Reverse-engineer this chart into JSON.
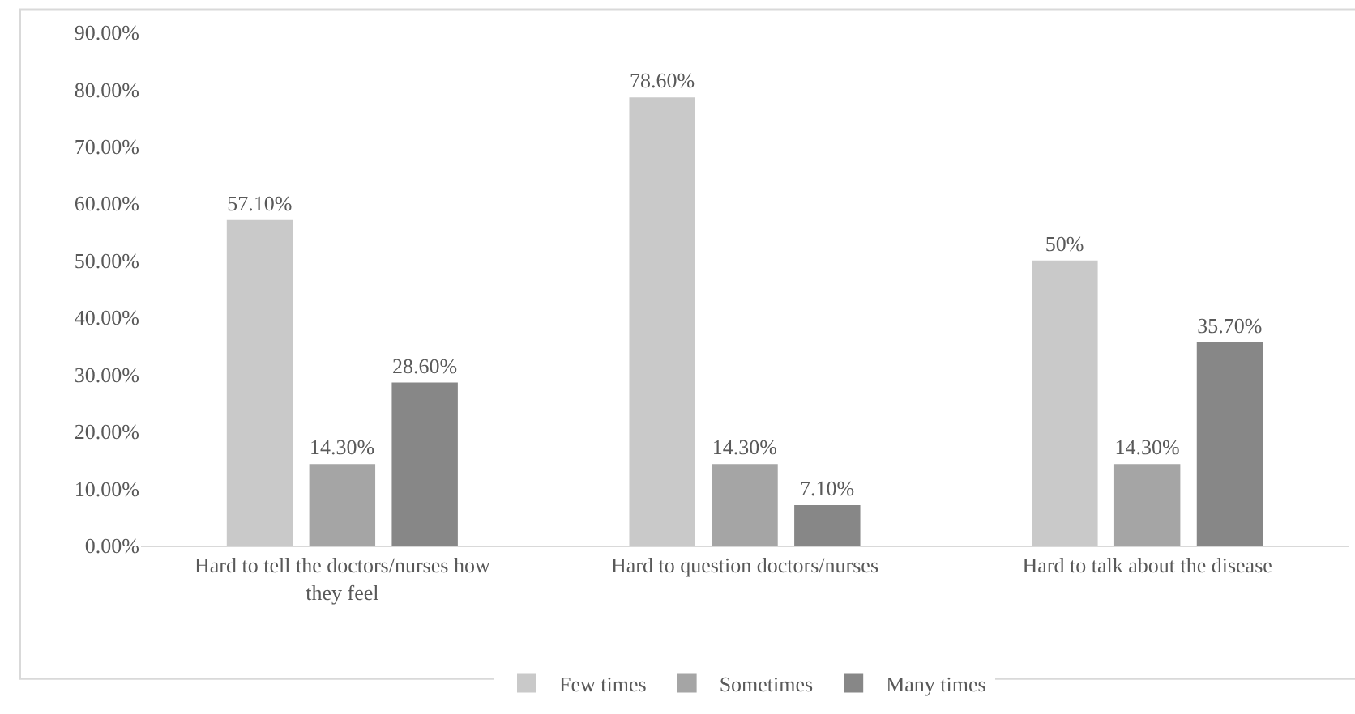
{
  "chart_data": {
    "type": "bar",
    "categories": [
      "Hard to tell the doctors/nurses how they feel",
      "Hard to question doctors/nurses",
      "Hard to talk about the disease"
    ],
    "series": [
      {
        "name": "Few times",
        "color": "#c9c9c9",
        "values": [
          57.1,
          78.6,
          50
        ],
        "value_labels": [
          "57.10%",
          "78.60%",
          "50%"
        ]
      },
      {
        "name": "Sometimes",
        "color": "#a5a5a5",
        "values": [
          14.3,
          14.3,
          14.3
        ],
        "value_labels": [
          "14.30%",
          "14.30%",
          "14.30%"
        ]
      },
      {
        "name": "Many times",
        "color": "#878787",
        "values": [
          28.6,
          7.1,
          35.7
        ],
        "value_labels": [
          "28.60%",
          "7.10%",
          "35.70%"
        ]
      }
    ],
    "ylim": [
      0,
      90
    ],
    "yticks": [
      {
        "value": 0,
        "label": "0.00%"
      },
      {
        "value": 10,
        "label": "10.00%"
      },
      {
        "value": 20,
        "label": "20.00%"
      },
      {
        "value": 30,
        "label": "30.00%"
      },
      {
        "value": 40,
        "label": "40.00%"
      },
      {
        "value": 50,
        "label": "50.00%"
      },
      {
        "value": 60,
        "label": "60.00%"
      },
      {
        "value": 70,
        "label": "70.00%"
      },
      {
        "value": 80,
        "label": "80.00%"
      },
      {
        "value": 90,
        "label": "90.00%"
      }
    ],
    "grid": false,
    "legend": "bottom"
  }
}
